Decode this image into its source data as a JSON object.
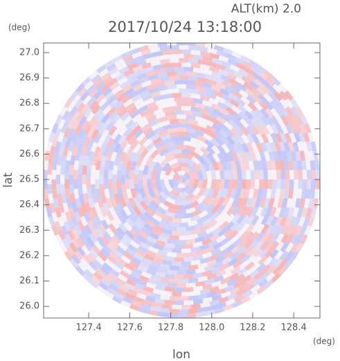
{
  "chart_data": {
    "type": "map",
    "title": "2017/10/24 13:18:00",
    "annotation": "ALT(km)  2.0",
    "x_label": "lon",
    "y_label": "lat",
    "x_unit": "(deg)",
    "y_unit": "(deg)",
    "xlim": [
      127.18,
      128.528
    ],
    "ylim": [
      25.954,
      27.038
    ],
    "xticks": [
      127.4,
      127.6,
      127.8,
      {
        "value": 128.0,
        "label": "128.0"
      },
      128.2,
      128.4
    ],
    "yticks": [
      {
        "value": 26.0,
        "label": "26.0"
      },
      26.1,
      26.2,
      26.3,
      26.4,
      26.5,
      26.6,
      26.7,
      26.8,
      26.9,
      {
        "value": 27.0,
        "label": "27.0"
      }
    ]
  }
}
